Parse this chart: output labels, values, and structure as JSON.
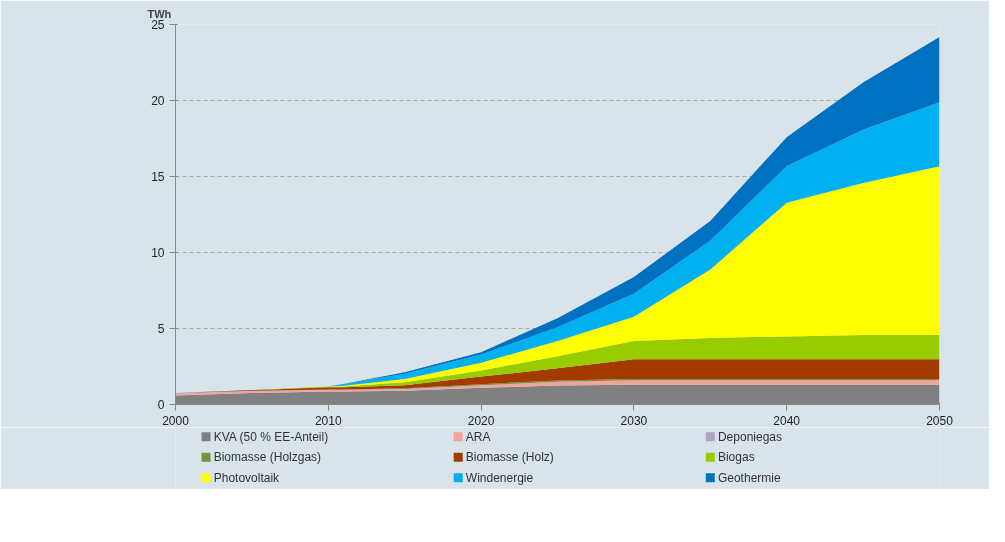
{
  "chart_data": {
    "type": "area",
    "stacked": true,
    "ylabel": "TWh",
    "x": [
      2000,
      2005,
      2010,
      2011,
      2015,
      2020,
      2025,
      2030,
      2035,
      2040,
      2045,
      2050
    ],
    "xlim": [
      2000,
      2050
    ],
    "xticks": [
      2000,
      2010,
      2020,
      2030,
      2040,
      2050
    ],
    "ylim": [
      0,
      25
    ],
    "yticks": [
      0,
      5,
      10,
      15,
      20,
      25
    ],
    "grid": "y",
    "legend": "bottom",
    "series": [
      {
        "name": "KVA (50 % EE-Anteil)",
        "color": "#808080",
        "values": [
          0.6,
          0.75,
          0.85,
          0.85,
          0.9,
          1.1,
          1.25,
          1.3,
          1.3,
          1.3,
          1.3,
          1.3
        ]
      },
      {
        "name": "ARA",
        "color": "#f2a39c",
        "values": [
          0.1,
          0.1,
          0.1,
          0.1,
          0.1,
          0.15,
          0.25,
          0.3,
          0.3,
          0.3,
          0.3,
          0.3
        ]
      },
      {
        "name": "Deponiegas",
        "color": "#b3a2c7",
        "values": [
          0.05,
          0.05,
          0.03,
          0.03,
          0.02,
          0.01,
          0,
          0,
          0,
          0,
          0,
          0
        ]
      },
      {
        "name": "Biomasse (Holzgas)",
        "color": "#77933c",
        "values": [
          0,
          0,
          0,
          0,
          0.05,
          0.08,
          0.08,
          0.08,
          0.08,
          0.08,
          0.08,
          0.08
        ]
      },
      {
        "name": "Biomasse (Holz)",
        "color": "#a33a00",
        "values": [
          0,
          0.05,
          0.15,
          0.15,
          0.2,
          0.5,
          0.8,
          1.3,
          1.3,
          1.3,
          1.3,
          1.3
        ]
      },
      {
        "name": "Biogas",
        "color": "#99cc00",
        "values": [
          0,
          0,
          0.05,
          0.05,
          0.2,
          0.4,
          0.8,
          1.2,
          1.4,
          1.5,
          1.6,
          1.6
        ]
      },
      {
        "name": "Photovoltaik",
        "color": "#ffff00",
        "values": [
          0,
          0,
          0.02,
          0.05,
          0.2,
          0.5,
          1.0,
          1.6,
          4.5,
          8.8,
          10.0,
          11.1
        ]
      },
      {
        "name": "Windenergie",
        "color": "#00b0f0",
        "values": [
          0,
          0,
          0,
          0.1,
          0.35,
          0.55,
          0.9,
          1.5,
          1.9,
          2.4,
          3.5,
          4.2
        ]
      },
      {
        "name": "Geothermie",
        "color": "#0070c0",
        "values": [
          0,
          0,
          0,
          0.02,
          0.1,
          0.15,
          0.6,
          1.1,
          1.3,
          1.9,
          3.1,
          4.3
        ]
      }
    ]
  }
}
